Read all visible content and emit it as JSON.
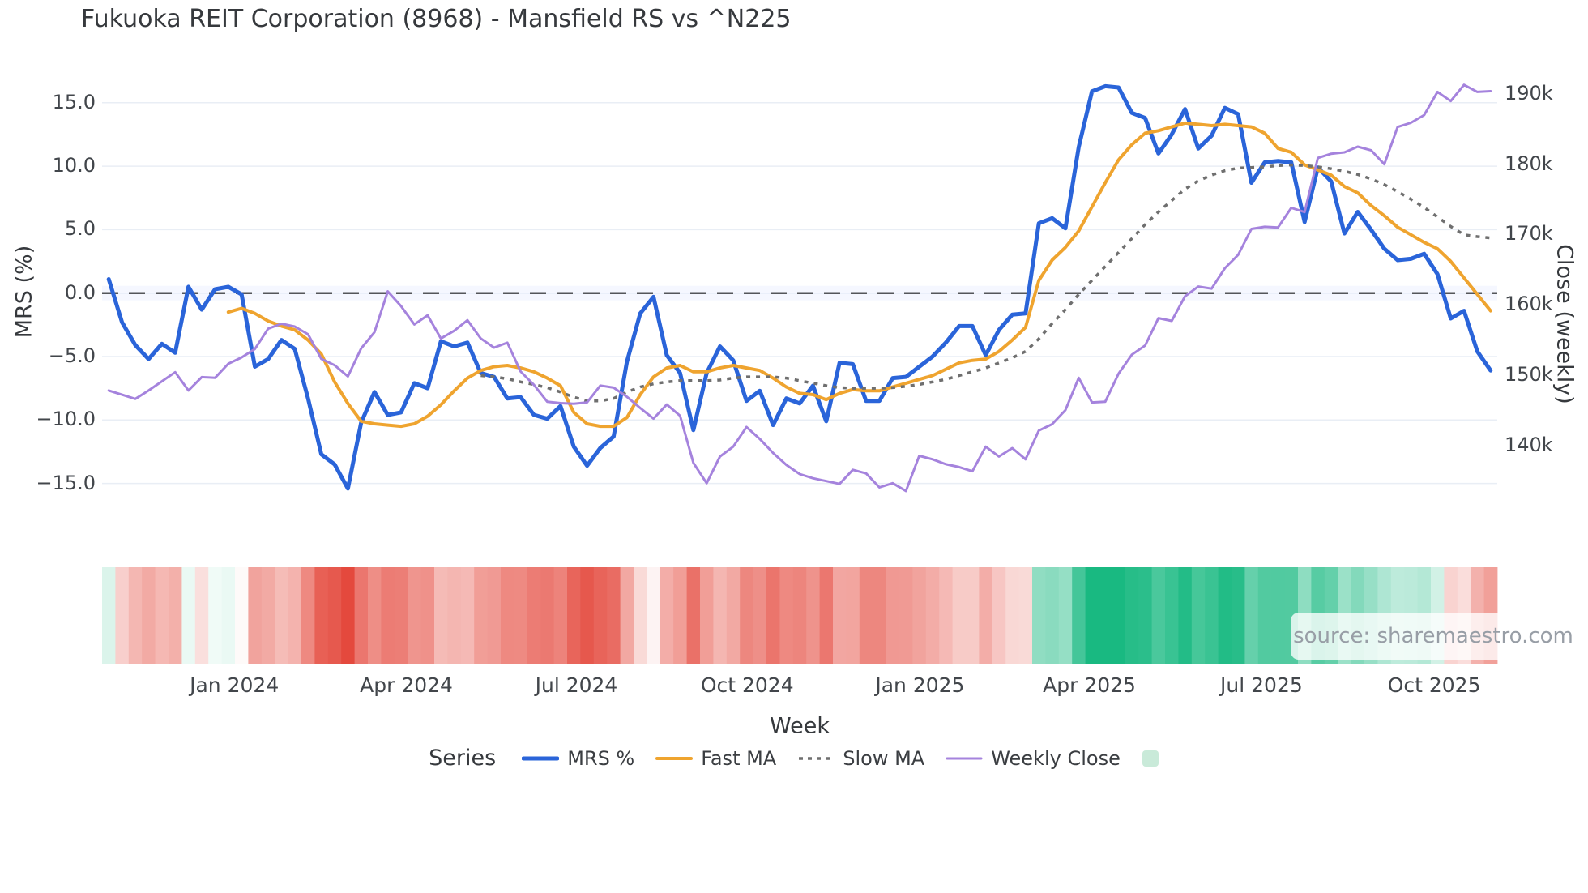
{
  "title": "Fukuoka REIT Corporation (8968) - Mansfield RS vs ^N225",
  "axes": {
    "left_title": "MRS (%)",
    "right_title": "Close (weekly)",
    "x_title": "Week",
    "left_ticks": [
      {
        "label": "15.0",
        "value": 15
      },
      {
        "label": "10.0",
        "value": 10
      },
      {
        "label": "5.0",
        "value": 5
      },
      {
        "label": "0.0",
        "value": 0
      },
      {
        "label": "−5.0",
        "value": -5
      },
      {
        "label": "−10.0",
        "value": -10
      },
      {
        "label": "−15.0",
        "value": -15
      }
    ],
    "right_ticks": [
      {
        "label": "190k",
        "value": 190
      },
      {
        "label": "180k",
        "value": 180
      },
      {
        "label": "170k",
        "value": 170
      },
      {
        "label": "160k",
        "value": 160
      },
      {
        "label": "150k",
        "value": 150
      },
      {
        "label": "140k",
        "value": 140
      }
    ]
  },
  "legend": {
    "title": "Series",
    "items": [
      {
        "label": "MRS %",
        "swatch": "line",
        "color": "#2a64d9",
        "width": 5
      },
      {
        "label": "Fast MA",
        "swatch": "line",
        "color": "#efa42f",
        "width": 4
      },
      {
        "label": "Slow MA",
        "swatch": "dotted-line",
        "color": "#6f6f6f",
        "width": 3.5
      },
      {
        "label": "Weekly Close",
        "swatch": "line",
        "color": "#a583dd",
        "width": 3
      },
      {
        "label": "",
        "swatch": "square",
        "color": "#c9ead9",
        "width": 0
      }
    ]
  },
  "watermark": "source: sharemaestro.com",
  "chart_data": {
    "type": "line",
    "x_unit": "week",
    "weeks": 105,
    "x_ticks": [
      {
        "label": "Jan 2024",
        "week": 9.45
      },
      {
        "label": "Apr 2024",
        "week": 22.4
      },
      {
        "label": "Jul 2024",
        "week": 35.2
      },
      {
        "label": "Oct 2024",
        "week": 48.05
      },
      {
        "label": "Jan 2025",
        "week": 61.05
      },
      {
        "label": "Apr 2025",
        "week": 73.8
      },
      {
        "label": "Jul 2025",
        "week": 86.75
      },
      {
        "label": "Oct 2025",
        "week": 99.75
      }
    ],
    "ylim_left": [
      -17,
      17.5
    ],
    "ylim_right_k": [
      133,
      193
    ],
    "grid": true,
    "legend_position": "bottom",
    "zero_line": {
      "value": 0,
      "style": "dashed",
      "color": "#54565a"
    },
    "series": [
      {
        "name": "MRS %",
        "axis": "left",
        "color": "#2a64d9",
        "style": "solid",
        "stroke_width": 5,
        "values": [
          1.1,
          -2.3,
          -4.1,
          -5.2,
          -4.0,
          -4.7,
          0.5,
          -1.3,
          0.3,
          0.5,
          -0.1,
          -5.8,
          -5.2,
          -3.7,
          -4.4,
          -8.3,
          -12.7,
          -13.5,
          -15.4,
          -10.2,
          -7.8,
          -9.6,
          -9.4,
          -7.1,
          -7.5,
          -3.8,
          -4.2,
          -3.9,
          -6.3,
          -6.6,
          -8.3,
          -8.2,
          -9.6,
          -9.9,
          -8.9,
          -12.1,
          -13.6,
          -12.2,
          -11.3,
          -5.4,
          -1.6,
          -0.3,
          -4.9,
          -6.3,
          -10.8,
          -6.3,
          -4.2,
          -5.3,
          -8.5,
          -7.7,
          -10.4,
          -8.3,
          -8.7,
          -7.3,
          -10.1,
          -5.5,
          -5.6,
          -8.5,
          -8.5,
          -6.7,
          -6.6,
          -5.8,
          -5.0,
          -3.9,
          -2.6,
          -2.6,
          -4.9,
          -2.9,
          -1.7,
          -1.6,
          5.5,
          5.9,
          5.1,
          11.5,
          15.9,
          16.3,
          16.2,
          14.2,
          13.8,
          11.0,
          12.5,
          14.5,
          11.4,
          12.4,
          14.6,
          14.1,
          8.7,
          10.3,
          10.4,
          10.3,
          5.6,
          9.9,
          8.8,
          4.7,
          6.4,
          5.0,
          3.5,
          2.6,
          2.7,
          3.1,
          1.5,
          -2.0,
          -1.4,
          -4.6,
          -6.1
        ]
      },
      {
        "name": "Fast MA",
        "axis": "left",
        "color": "#efa42f",
        "style": "solid",
        "stroke_width": 4,
        "values": [
          null,
          null,
          null,
          null,
          null,
          null,
          null,
          null,
          null,
          -1.5,
          -1.2,
          -1.6,
          -2.2,
          -2.6,
          -2.9,
          -3.7,
          -4.8,
          -7.0,
          -8.7,
          -10.1,
          -10.3,
          -10.4,
          -10.5,
          -10.3,
          -9.7,
          -8.8,
          -7.7,
          -6.7,
          -6.1,
          -5.8,
          -5.7,
          -5.9,
          -6.2,
          -6.7,
          -7.3,
          -9.4,
          -10.3,
          -10.5,
          -10.5,
          -9.8,
          -8.0,
          -6.6,
          -5.9,
          -5.7,
          -6.2,
          -6.2,
          -5.9,
          -5.7,
          -5.9,
          -6.1,
          -6.7,
          -7.4,
          -7.9,
          -8.0,
          -8.4,
          -7.9,
          -7.6,
          -7.7,
          -7.7,
          -7.4,
          -7.1,
          -6.8,
          -6.5,
          -6.0,
          -5.5,
          -5.3,
          -5.2,
          -4.6,
          -3.7,
          -2.7,
          1.0,
          2.6,
          3.6,
          4.9,
          6.8,
          8.7,
          10.5,
          11.7,
          12.6,
          12.8,
          13.1,
          13.4,
          13.3,
          13.2,
          13.3,
          13.2,
          13.1,
          12.6,
          11.4,
          11.1,
          10.1,
          9.7,
          9.3,
          8.4,
          7.9,
          6.9,
          6.1,
          5.2,
          4.6,
          4.0,
          3.5,
          2.5,
          1.2,
          -0.1,
          -1.4
        ]
      },
      {
        "name": "Slow MA",
        "axis": "left",
        "color": "#6f6f6f",
        "style": "dotted",
        "stroke_width": 3.5,
        "values": [
          null,
          null,
          null,
          null,
          null,
          null,
          null,
          null,
          null,
          null,
          null,
          null,
          null,
          null,
          null,
          null,
          null,
          null,
          null,
          null,
          null,
          null,
          null,
          null,
          null,
          null,
          null,
          null,
          -6.5,
          -6.6,
          -6.75,
          -7.0,
          -7.2,
          -7.45,
          -7.8,
          -8.2,
          -8.5,
          -8.5,
          -8.3,
          -7.8,
          -7.4,
          -7.15,
          -7.0,
          -6.9,
          -6.9,
          -6.9,
          -6.85,
          -6.7,
          -6.6,
          -6.6,
          -6.6,
          -6.7,
          -6.9,
          -7.1,
          -7.3,
          -7.45,
          -7.5,
          -7.5,
          -7.5,
          -7.45,
          -7.35,
          -7.2,
          -7.0,
          -6.8,
          -6.5,
          -6.2,
          -5.9,
          -5.5,
          -5.1,
          -4.6,
          -3.6,
          -2.4,
          -1.3,
          -0.1,
          1.0,
          2.1,
          3.2,
          4.3,
          5.4,
          6.4,
          7.3,
          8.2,
          8.85,
          9.3,
          9.65,
          9.85,
          9.9,
          9.95,
          10.05,
          10.1,
          10.05,
          9.95,
          9.8,
          9.6,
          9.35,
          9.0,
          8.55,
          8.0,
          7.4,
          6.75,
          6.0,
          5.25,
          4.6,
          4.45,
          4.35
        ]
      },
      {
        "name": "Weekly Close",
        "axis": "right",
        "color": "#a583dd",
        "style": "solid",
        "stroke_width": 3,
        "values": [
          147.8,
          147.2,
          146.6,
          147.8,
          149.1,
          150.4,
          147.8,
          149.7,
          149.6,
          151.6,
          152.5,
          153.7,
          156.6,
          157.3,
          156.9,
          155.8,
          152.3,
          151.4,
          149.8,
          153.8,
          156.1,
          161.9,
          159.8,
          157.2,
          158.5,
          155.2,
          156.3,
          157.8,
          155.2,
          153.9,
          154.6,
          150.5,
          148.6,
          146.2,
          146.0,
          145.9,
          146.1,
          148.5,
          148.2,
          146.9,
          145.3,
          143.8,
          145.8,
          144.2,
          137.5,
          134.6,
          138.4,
          139.8,
          142.6,
          140.9,
          138.9,
          137.2,
          135.9,
          135.3,
          134.9,
          134.5,
          136.5,
          136.0,
          134.0,
          134.6,
          133.5,
          138.5,
          138.0,
          137.3,
          136.9,
          136.3,
          139.8,
          138.4,
          139.6,
          138.0,
          142.1,
          143.0,
          145.0,
          149.6,
          146.1,
          146.2,
          150.2,
          152.9,
          154.2,
          158.1,
          157.7,
          161.2,
          162.6,
          162.3,
          165.2,
          167.1,
          170.8,
          171.1,
          171.0,
          173.8,
          173.2,
          180.9,
          181.5,
          181.7,
          182.5,
          182.0,
          180.0,
          185.3,
          185.9,
          187.0,
          190.3,
          189.0,
          191.3,
          190.3,
          190.4
        ]
      }
    ],
    "heatmap": {
      "source_series": "MRS %",
      "positive_color": "#19b981",
      "negative_color": "#e4483c",
      "neutral_color": "#ffffff"
    }
  }
}
